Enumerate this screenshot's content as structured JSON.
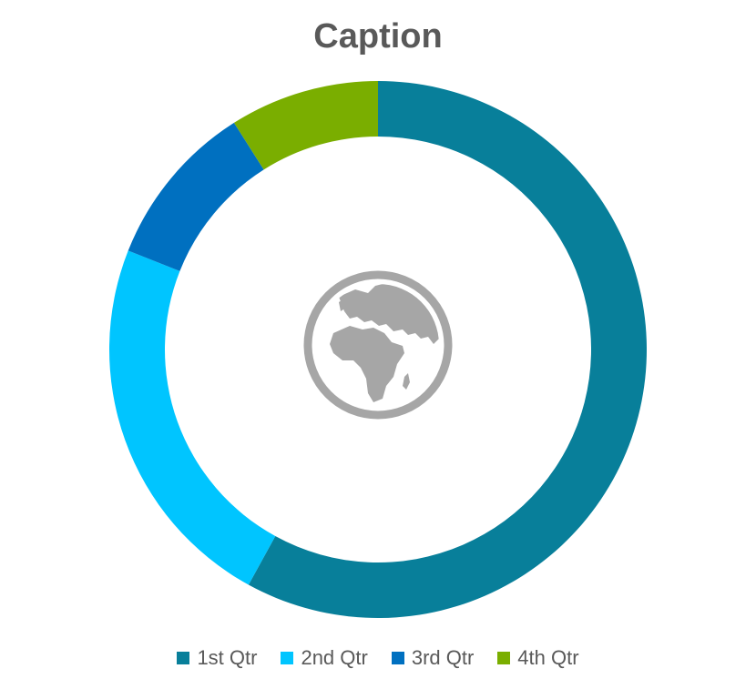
{
  "chart_data": {
    "type": "pie",
    "title": "Caption",
    "donut": true,
    "center_icon": "globe-icon",
    "categories": [
      "1st Qtr",
      "2nd Qtr",
      "3rd Qtr",
      "4th Qtr"
    ],
    "values": [
      58,
      23,
      10,
      9
    ],
    "colors": [
      "#087F9A",
      "#00C5FF",
      "#0070C0",
      "#7AAE00"
    ],
    "legend": "bottom"
  }
}
